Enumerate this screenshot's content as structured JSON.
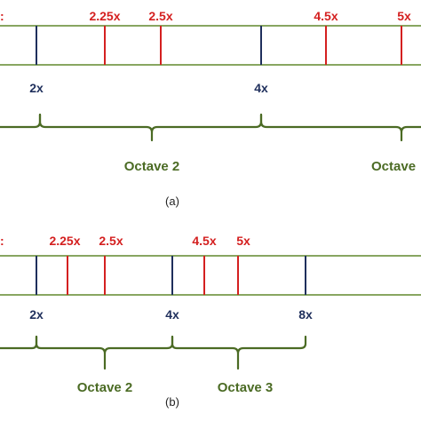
{
  "panels": [
    {
      "caption": "(a)",
      "red_labels": [
        "2.25x",
        "2.5x",
        "4.5x",
        "5x"
      ],
      "blue_labels": [
        "2x",
        "4x"
      ],
      "octave_labels": [
        "Octave 2",
        "Octave"
      ],
      "red_cut_label": ":"
    },
    {
      "caption": "(b)",
      "red_labels": [
        "2.25x",
        "2.5x",
        "4.5x",
        "5x"
      ],
      "blue_labels": [
        "2x",
        "4x",
        "8x"
      ],
      "octave_labels": [
        "Octave 2",
        "Octave 3"
      ],
      "red_cut_label": ":"
    }
  ],
  "colors": {
    "harmonic_red": "#d42020",
    "octave_blue": "#1f2f5c",
    "bar_green": "#6a8f3a",
    "brace_green": "#4b6b24"
  }
}
